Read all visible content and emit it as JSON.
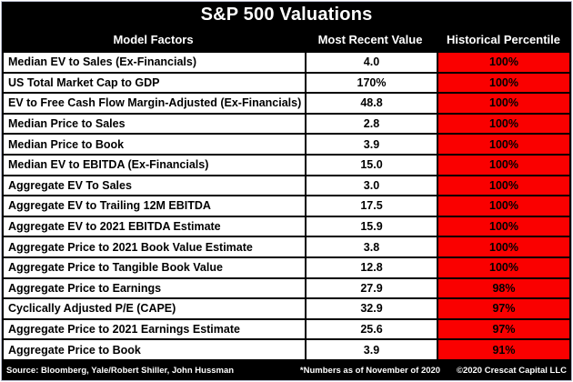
{
  "chart_data": {
    "type": "table",
    "title": "S&P 500 Valuations",
    "columns": [
      "Model Factors",
      "Most Recent Value",
      "Historical Percentile"
    ],
    "rows": [
      [
        "Median EV to Sales (Ex-Financials)",
        "4.0",
        "100%"
      ],
      [
        "US Total Market Cap to GDP",
        "170%",
        "100%"
      ],
      [
        "EV to Free Cash Flow Margin-Adjusted (Ex-Financials)",
        "48.8",
        "100%"
      ],
      [
        "Median Price to Sales",
        "2.8",
        "100%"
      ],
      [
        "Median Price to Book",
        "3.9",
        "100%"
      ],
      [
        "Median EV to EBITDA (Ex-Financials)",
        "15.0",
        "100%"
      ],
      [
        "Aggregate EV To Sales",
        "3.0",
        "100%"
      ],
      [
        "Aggregate EV to Trailing 12M EBITDA",
        "17.5",
        "100%"
      ],
      [
        "Aggregate EV to 2021 EBITDA Estimate",
        "15.9",
        "100%"
      ],
      [
        "Aggregate Price to 2021 Book Value Estimate",
        "3.8",
        "100%"
      ],
      [
        "Aggregate Price to Tangible Book Value",
        "12.8",
        "100%"
      ],
      [
        "Aggregate Price to Earnings",
        "27.9",
        "98%"
      ],
      [
        "Cyclically Adjusted P/E (CAPE)",
        "32.9",
        "97%"
      ],
      [
        "Aggregate Price to 2021 Earnings Estimate",
        "25.6",
        "97%"
      ],
      [
        "Aggregate Price to Book",
        "3.9",
        "91%"
      ]
    ],
    "layout_hints": {
      "percentile_cell_bg": "#fa0000",
      "header_bg": "#000000",
      "header_text": "#ffffff",
      "row_bg": "#ffffff",
      "row_text": "#000000"
    }
  },
  "footer": {
    "source": "Source: Bloomberg, Yale/Robert Shiller, John Hussman",
    "note": "*Numbers as of November of 2020",
    "copyright": "©2020 Crescat Capital LLC"
  }
}
